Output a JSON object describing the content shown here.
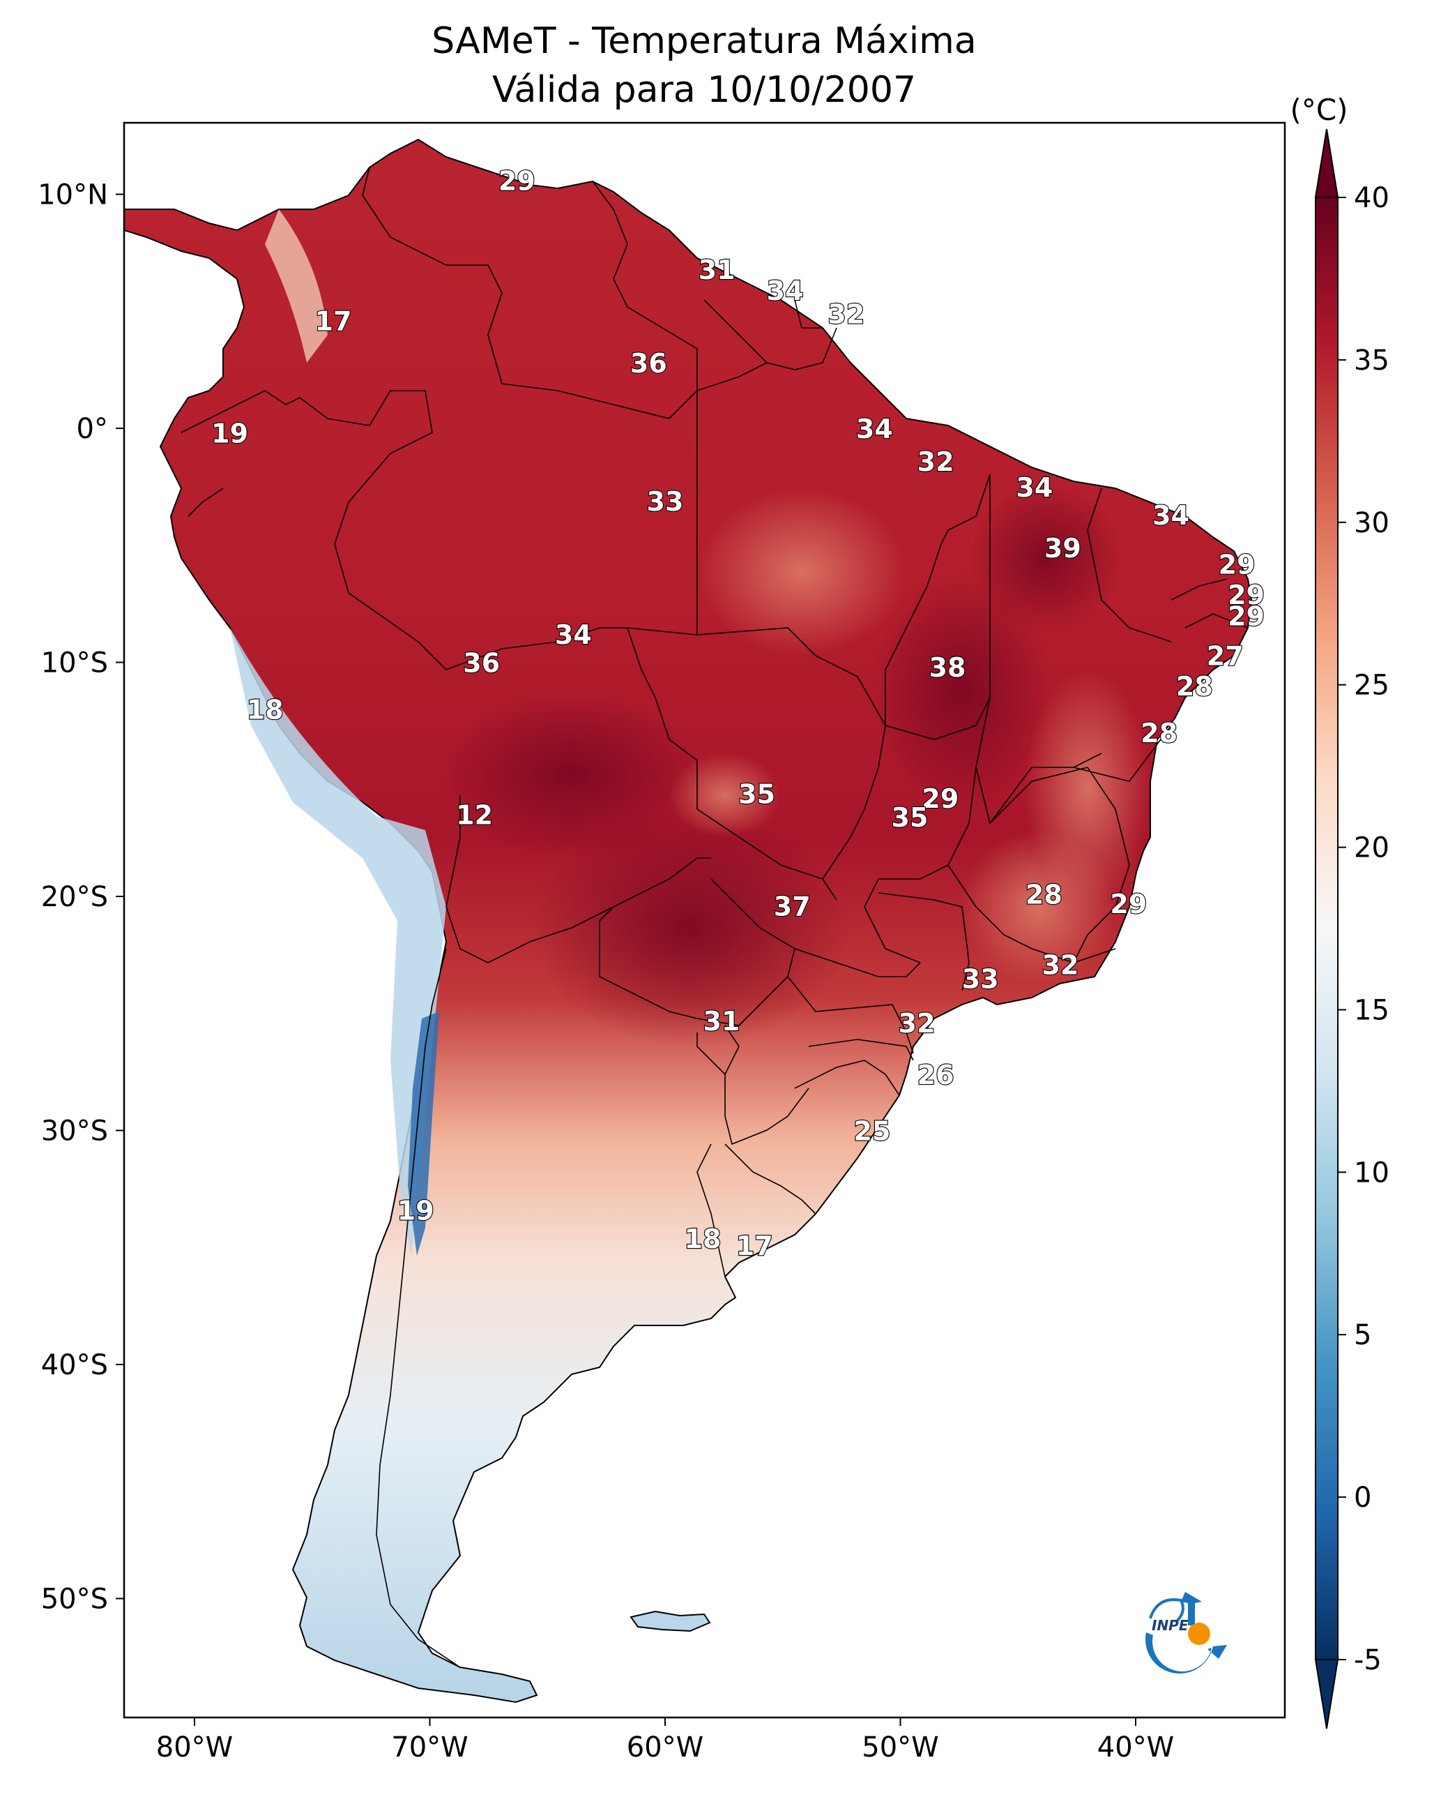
{
  "title": "SAMeT - Temperatura Máxima",
  "subtitle": "Válida para 10/10/2007",
  "colorbar": {
    "unit_label": "(°C)",
    "ticks": [
      "40",
      "35",
      "30",
      "25",
      "20",
      "15",
      "10",
      "5",
      "0",
      "-5"
    ],
    "range": [
      -5,
      40
    ],
    "colors": [
      "#053061",
      "#2166ac",
      "#4393c3",
      "#92c5de",
      "#d1e5f0",
      "#f7f7f7",
      "#fddbc7",
      "#f4a582",
      "#d6604d",
      "#b2182b",
      "#67001f"
    ]
  },
  "axes": {
    "lon_labels": [
      "80°W",
      "70°W",
      "60°W",
      "50°W",
      "40°W"
    ],
    "lat_labels": [
      "10°N",
      "0°",
      "10°S",
      "20°S",
      "30°S",
      "40°S",
      "50°S"
    ]
  },
  "temperature_labels": [
    {
      "text": "29",
      "lon": -66.3,
      "lat": 10.6
    },
    {
      "text": "17",
      "lon": -74.1,
      "lat": 4.6
    },
    {
      "text": "19",
      "lon": -78.5,
      "lat": -0.2
    },
    {
      "text": "31",
      "lon": -57.8,
      "lat": 6.8
    },
    {
      "text": "34",
      "lon": -54.9,
      "lat": 5.9
    },
    {
      "text": "32",
      "lon": -52.3,
      "lat": 4.9
    },
    {
      "text": "36",
      "lon": -60.7,
      "lat": 2.8
    },
    {
      "text": "34",
      "lon": -51.1,
      "lat": -0.0
    },
    {
      "text": "32",
      "lon": -48.5,
      "lat": -1.4
    },
    {
      "text": "33",
      "lon": -60.0,
      "lat": -3.1
    },
    {
      "text": "34",
      "lon": -44.3,
      "lat": -2.5
    },
    {
      "text": "34",
      "lon": -38.5,
      "lat": -3.7
    },
    {
      "text": "39",
      "lon": -43.1,
      "lat": -5.1
    },
    {
      "text": "29",
      "lon": -35.7,
      "lat": -5.8
    },
    {
      "text": "29",
      "lon": -35.3,
      "lat": -7.1
    },
    {
      "text": "29",
      "lon": -35.3,
      "lat": -8.0
    },
    {
      "text": "27",
      "lon": -36.2,
      "lat": -9.7
    },
    {
      "text": "34",
      "lon": -63.9,
      "lat": -8.8
    },
    {
      "text": "36",
      "lon": -67.8,
      "lat": -10.0
    },
    {
      "text": "38",
      "lon": -48.0,
      "lat": -10.2
    },
    {
      "text": "28",
      "lon": -37.5,
      "lat": -11.0
    },
    {
      "text": "18",
      "lon": -77.0,
      "lat": -12.0
    },
    {
      "text": "28",
      "lon": -39.0,
      "lat": -13.0
    },
    {
      "text": "35",
      "lon": -56.1,
      "lat": -15.6
    },
    {
      "text": "29",
      "lon": -48.3,
      "lat": -15.8
    },
    {
      "text": "35",
      "lon": -49.6,
      "lat": -16.6
    },
    {
      "text": "12",
      "lon": -68.1,
      "lat": -16.5
    },
    {
      "text": "28",
      "lon": -43.9,
      "lat": -19.9
    },
    {
      "text": "29",
      "lon": -40.3,
      "lat": -20.3
    },
    {
      "text": "37",
      "lon": -54.6,
      "lat": -20.4
    },
    {
      "text": "32",
      "lon": -43.2,
      "lat": -22.9
    },
    {
      "text": "33",
      "lon": -46.6,
      "lat": -23.5
    },
    {
      "text": "31",
      "lon": -57.6,
      "lat": -25.3
    },
    {
      "text": "32",
      "lon": -49.3,
      "lat": -25.4
    },
    {
      "text": "26",
      "lon": -48.5,
      "lat": -27.6
    },
    {
      "text": "25",
      "lon": -51.2,
      "lat": -30.0
    },
    {
      "text": "19",
      "lon": -70.6,
      "lat": -33.4
    },
    {
      "text": "18",
      "lon": -58.4,
      "lat": -34.6
    },
    {
      "text": "17",
      "lon": -56.2,
      "lat": -34.9
    }
  ],
  "logo": {
    "text": "INPE"
  }
}
